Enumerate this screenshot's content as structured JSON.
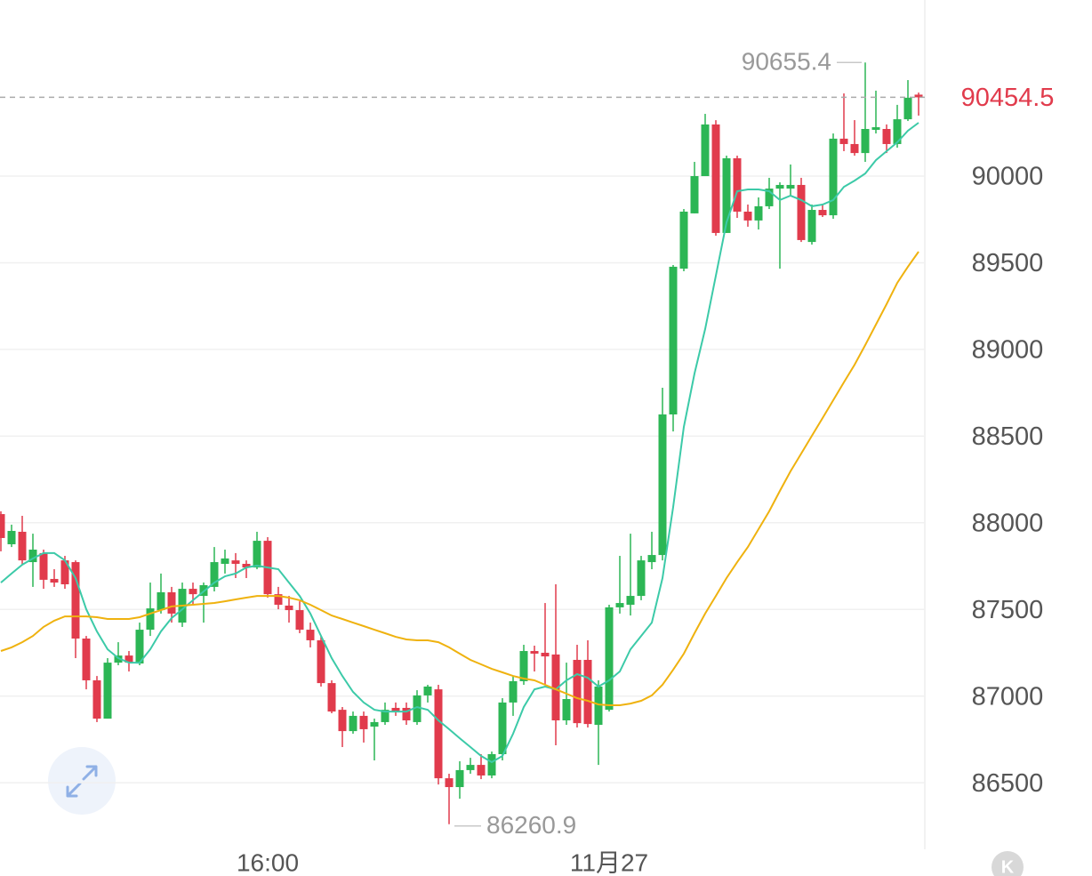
{
  "chart_data": {
    "type": "candlestick",
    "categories": [
      null,
      null,
      null,
      null,
      null,
      null,
      null,
      null,
      null,
      null,
      null,
      null,
      null,
      null,
      null,
      null,
      null,
      null,
      null,
      null,
      null,
      null,
      null,
      null,
      null,
      "16:00",
      null,
      null,
      null,
      null,
      null,
      null,
      null,
      null,
      null,
      null,
      null,
      null,
      null,
      null,
      null,
      null,
      null,
      null,
      null,
      null,
      null,
      null,
      null,
      null,
      null,
      null,
      null,
      null,
      null,
      null,
      null,
      "11月27",
      null,
      null,
      null,
      null,
      null,
      null,
      null,
      null,
      null,
      null,
      null,
      null,
      null,
      null,
      null,
      null,
      null,
      null,
      null,
      null,
      null,
      null,
      null,
      null,
      null,
      null,
      null,
      null,
      null
    ],
    "open": [
      88050,
      87876,
      87948,
      87773,
      87825,
      87676,
      87783,
      87773,
      87332,
      87091,
      86870,
      87193,
      87234,
      87188,
      87383,
      87496,
      87599,
      87424,
      87619,
      87578,
      87630,
      87763,
      87783,
      87763,
      87742,
      87896,
      87588,
      87522,
      87496,
      87383,
      87322,
      87075,
      86921,
      86798,
      86886,
      86824,
      86850,
      86932,
      86932,
      86850,
      87004,
      87039,
      86526,
      86475,
      86573,
      86603,
      86542,
      86665,
      86963,
      87086,
      87260,
      87250,
      87240,
      86860,
      87209,
      87209,
      86834,
      86921,
      87512,
      87527,
      87578,
      87773,
      87814,
      88625,
      89466,
      89785,
      90000,
      90298,
      89672,
      90103,
      89795,
      89744,
      89826,
      89928,
      89928,
      89949,
      89620,
      89805,
      89774,
      90216,
      90185,
      90133,
      90267,
      90272,
      90185,
      90328,
      90470
    ],
    "high": [
      88066,
      87989,
      88040,
      87937,
      87845,
      87732,
      87809,
      87783,
      87347,
      87116,
      87219,
      87311,
      87260,
      87424,
      87655,
      87707,
      87630,
      87655,
      87655,
      87655,
      87860,
      87845,
      87825,
      87783,
      87948,
      87917,
      87630,
      87578,
      87547,
      87424,
      87347,
      87091,
      86937,
      86911,
      86911,
      86870,
      86963,
      86963,
      86963,
      87034,
      87065,
      87065,
      86552,
      86624,
      86644,
      86665,
      86680,
      86988,
      87116,
      87296,
      87291,
      87537,
      87645,
      87193,
      87296,
      87322,
      87091,
      87527,
      87809,
      87937,
      87809,
      87948,
      88779,
      89487,
      89810,
      90082,
      90359,
      90323,
      90118,
      90118,
      89836,
      89877,
      89990,
      89964,
      90067,
      89990,
      89836,
      89836,
      90246,
      90477,
      90323,
      90655.4,
      90493,
      90298,
      90411,
      90554,
      90482
    ],
    "low": [
      87835,
      87860,
      87758,
      87630,
      87619,
      87630,
      87619,
      87219,
      87039,
      86850,
      86870,
      87178,
      87142,
      87178,
      87347,
      87476,
      87424,
      87399,
      87527,
      87424,
      87604,
      87707,
      87681,
      87681,
      87732,
      87568,
      87501,
      87424,
      87363,
      87281,
      87055,
      86901,
      86706,
      86783,
      86732,
      86629,
      86834,
      86886,
      86834,
      86834,
      86963,
      86490,
      86260.9,
      86408,
      86552,
      86521,
      86526,
      86629,
      86886,
      87065,
      87142,
      87065,
      86716,
      86834,
      86819,
      86819,
      86603,
      86911,
      87476,
      87465,
      87553,
      87732,
      87783,
      88527,
      89451,
      89785,
      90000,
      89656,
      89672,
      89759,
      89708,
      89692,
      89810,
      89466,
      89887,
      89620,
      89605,
      89764,
      89754,
      90144,
      90118,
      90082,
      90246,
      90133,
      90164,
      90318,
      90349
    ],
    "close": [
      87912,
      87953,
      87783,
      87845,
      87671,
      87655,
      87645,
      87332,
      87091,
      86870,
      87193,
      87234,
      87193,
      87383,
      87506,
      87599,
      87476,
      87619,
      87588,
      87640,
      87773,
      87794,
      87763,
      87742,
      87896,
      87588,
      87527,
      87496,
      87383,
      87322,
      87075,
      86911,
      86798,
      86886,
      86809,
      86850,
      86921,
      86911,
      86860,
      87004,
      87055,
      86526,
      86475,
      86573,
      86603,
      86542,
      86665,
      86963,
      87086,
      87260,
      87245,
      87229,
      86860,
      86983,
      86844,
      86839,
      87055,
      87512,
      87537,
      87578,
      87783,
      87814,
      88625,
      89477,
      89795,
      90000,
      90298,
      89672,
      90103,
      89795,
      89744,
      89826,
      89928,
      89949,
      89949,
      89631,
      89805,
      89774,
      90216,
      90185,
      90133,
      90272,
      90282,
      90185,
      90328,
      90452,
      90454.5
    ],
    "up_color": "#2cb655",
    "down_color": "#e13b4c",
    "series": [
      {
        "color": "#3ccaa8",
        "values": [
          87655,
          87707,
          87758,
          87794,
          87825,
          87825,
          87783,
          87681,
          87501,
          87373,
          87270,
          87219,
          87193,
          87193,
          87270,
          87373,
          87450,
          87501,
          87553,
          87604,
          87655,
          87691,
          87707,
          87742,
          87753,
          87742,
          87732,
          87655,
          87578,
          87476,
          87347,
          87219,
          87116,
          87024,
          86963,
          86921,
          86911,
          86911,
          86911,
          86937,
          86921,
          86860,
          86809,
          86757,
          86706,
          86655,
          86619,
          86655,
          86783,
          86937,
          87039,
          87055,
          87039,
          87091,
          87127,
          87106,
          87055,
          87091,
          87142,
          87270,
          87347,
          87424,
          87681,
          88091,
          88553,
          88861,
          89118,
          89425,
          89733,
          89913,
          89923,
          89923,
          89913,
          89862,
          89887,
          89862,
          89826,
          89836,
          89862,
          89938,
          89974,
          90015,
          90092,
          90144,
          90195,
          90262,
          90308
        ]
      },
      {
        "color": "#efb20f",
        "values": [
          87260,
          87281,
          87311,
          87347,
          87399,
          87435,
          87460,
          87460,
          87460,
          87455,
          87445,
          87445,
          87445,
          87455,
          87476,
          87496,
          87517,
          87522,
          87527,
          87532,
          87537,
          87547,
          87558,
          87568,
          87578,
          87578,
          87578,
          87568,
          87553,
          87527,
          87496,
          87465,
          87445,
          87424,
          87404,
          87383,
          87363,
          87342,
          87327,
          87322,
          87322,
          87311,
          87281,
          87245,
          87209,
          87183,
          87157,
          87137,
          87116,
          87101,
          87091,
          87065,
          87039,
          87014,
          86988,
          86973,
          86952,
          86947,
          86947,
          86957,
          86973,
          87004,
          87065,
          87152,
          87245,
          87363,
          87476,
          87578,
          87681,
          87773,
          87860,
          87963,
          88066,
          88184,
          88297,
          88399,
          88502,
          88604,
          88707,
          88810,
          88912,
          89025,
          89143,
          89261,
          89384,
          89477,
          89564
        ]
      }
    ],
    "ylim": [
      86116,
      91016
    ],
    "yticks": [
      86500,
      87000,
      87500,
      88000,
      88500,
      89000,
      89500,
      90000
    ],
    "grid": true,
    "logo": "K"
  }
}
